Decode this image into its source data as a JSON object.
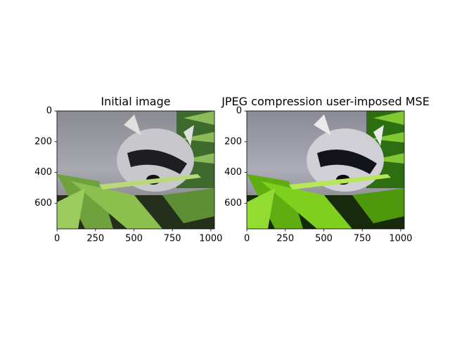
{
  "chart_data": [
    {
      "type": "image",
      "title": "Initial image",
      "xlim": [
        -0.5,
        1023.5
      ],
      "ylim": [
        767.5,
        -0.5
      ],
      "xticks": [
        0,
        250,
        500,
        750,
        1000
      ],
      "yticks": [
        0,
        200,
        400,
        600
      ]
    },
    {
      "type": "image",
      "title": "JPEG compression user-imposed MSE",
      "xlim": [
        -0.5,
        1023.5
      ],
      "ylim": [
        767.5,
        -0.5
      ],
      "xticks": [
        0,
        250,
        500,
        750,
        1000
      ],
      "yticks": [
        0,
        200,
        400,
        600
      ]
    }
  ]
}
